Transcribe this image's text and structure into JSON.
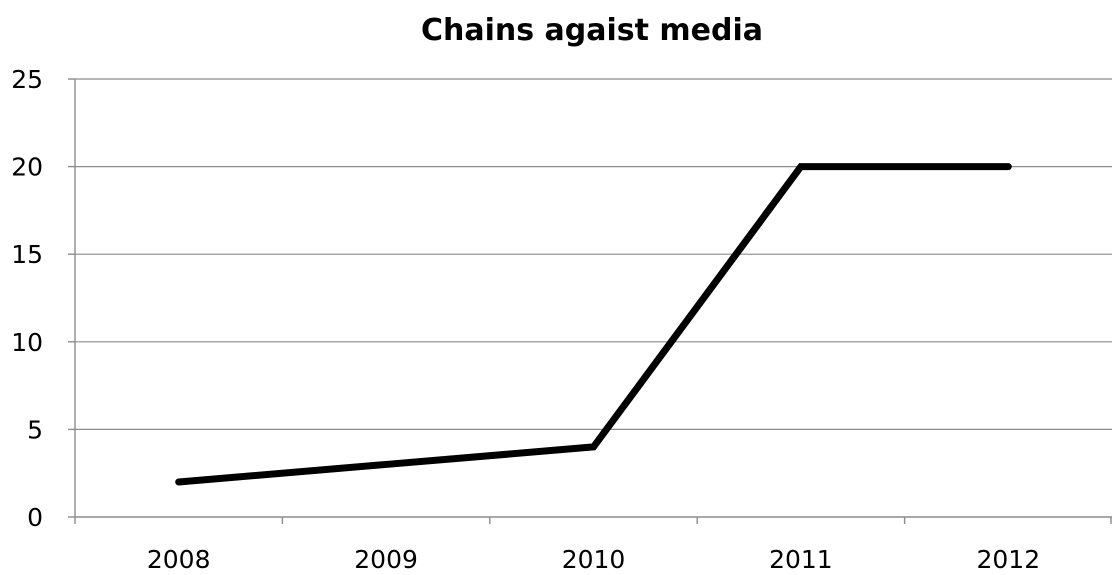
{
  "chart_data": {
    "type": "line",
    "title": "Chains agaist media",
    "xlabel": "",
    "ylabel": "",
    "categories": [
      "2008",
      "2009",
      "2010",
      "2011",
      "2012"
    ],
    "series": [
      {
        "values": [
          2,
          3,
          4,
          20,
          20
        ]
      }
    ],
    "ylim": [
      0,
      25
    ],
    "yticks": [
      0,
      5,
      10,
      15,
      20,
      25
    ],
    "grid": "horizontal",
    "legend": "none",
    "colors": {
      "series": "#000000",
      "grid": "#8c8c8c",
      "background": "#ffffff"
    }
  }
}
